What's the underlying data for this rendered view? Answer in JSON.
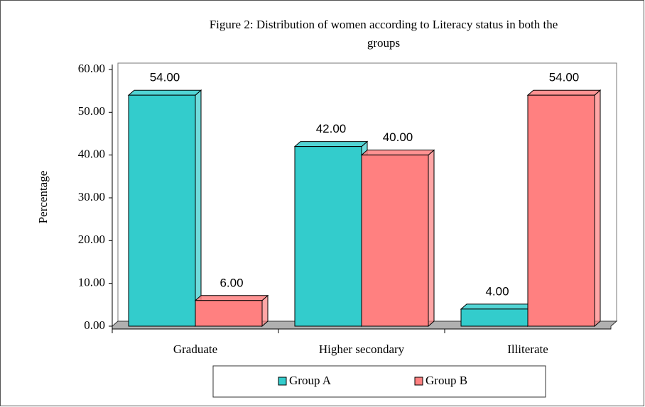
{
  "chart_data": {
    "type": "bar",
    "title": "Figure 2: Distribution  of women according to Literacy status in both the groups",
    "y_label": "Percentage",
    "categories": [
      "Graduate",
      "Higher secondary",
      "Illiterate"
    ],
    "series": [
      {
        "name": "Group A",
        "color": "#33cccc",
        "values": [
          54,
          42,
          4
        ],
        "value_labels": [
          "54.00",
          "42.00",
          "4.00"
        ]
      },
      {
        "name": "Group B",
        "color": "#ff8080",
        "values": [
          6,
          40,
          54
        ],
        "value_labels": [
          "6.00",
          "40.00",
          "54.00"
        ]
      }
    ],
    "ylim": [
      0,
      60
    ],
    "yticks": [
      {
        "value": 0,
        "label": "0.00"
      },
      {
        "value": 10,
        "label": "10.00"
      },
      {
        "value": 20,
        "label": "20.00"
      },
      {
        "value": 30,
        "label": "30.00"
      },
      {
        "value": 40,
        "label": "40.00"
      },
      {
        "value": 50,
        "label": "50.00"
      },
      {
        "value": 60,
        "label": "60.00"
      }
    ],
    "legend": "bottom"
  }
}
